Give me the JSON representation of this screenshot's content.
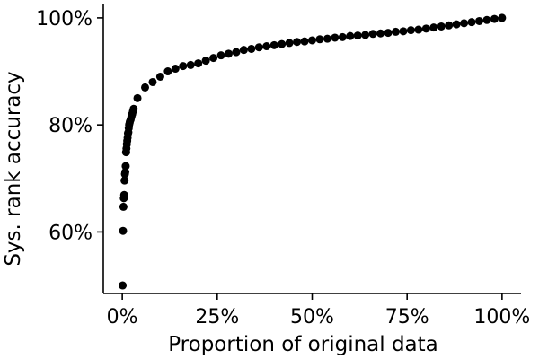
{
  "chart_data": {
    "type": "scatter",
    "title": "",
    "xlabel": "Proportion of original data",
    "ylabel": "Sys. rank accuracy",
    "xlim": [
      -0.05,
      1.05
    ],
    "ylim": [
      48.5,
      102.5
    ],
    "grid": false,
    "legend": "none",
    "marker_color": "#000000",
    "x_ticks": [
      {
        "value": 0.0,
        "label": "0%"
      },
      {
        "value": 0.25,
        "label": "25%"
      },
      {
        "value": 0.5,
        "label": "50%"
      },
      {
        "value": 0.75,
        "label": "75%"
      },
      {
        "value": 1.0,
        "label": "100%"
      }
    ],
    "y_ticks": [
      {
        "value": 60,
        "label": "60%"
      },
      {
        "value": 80,
        "label": "80%"
      },
      {
        "value": 100,
        "label": "100%"
      }
    ],
    "series": [
      {
        "points": [
          [
            0.001,
            50.0
          ],
          [
            0.002,
            60.2
          ],
          [
            0.003,
            64.7
          ],
          [
            0.004,
            66.3
          ],
          [
            0.005,
            66.9
          ],
          [
            0.006,
            69.6
          ],
          [
            0.007,
            70.8
          ],
          [
            0.008,
            71.2
          ],
          [
            0.009,
            72.3
          ],
          [
            0.01,
            74.9
          ],
          [
            0.011,
            75.6
          ],
          [
            0.012,
            76.4
          ],
          [
            0.013,
            77.0
          ],
          [
            0.014,
            77.6
          ],
          [
            0.015,
            78.4
          ],
          [
            0.016,
            78.6
          ],
          [
            0.017,
            79.4
          ],
          [
            0.018,
            80.0
          ],
          [
            0.019,
            80.3
          ],
          [
            0.02,
            80.6
          ],
          [
            0.022,
            81.0
          ],
          [
            0.024,
            81.5
          ],
          [
            0.026,
            82.0
          ],
          [
            0.028,
            82.5
          ],
          [
            0.03,
            83.0
          ],
          [
            0.04,
            85.0
          ],
          [
            0.06,
            87.0
          ],
          [
            0.08,
            88.0
          ],
          [
            0.1,
            89.0
          ],
          [
            0.12,
            90.0
          ],
          [
            0.14,
            90.5
          ],
          [
            0.16,
            91.0
          ],
          [
            0.18,
            91.2
          ],
          [
            0.2,
            91.5
          ],
          [
            0.22,
            92.0
          ],
          [
            0.24,
            92.5
          ],
          [
            0.26,
            93.0
          ],
          [
            0.28,
            93.3
          ],
          [
            0.3,
            93.6
          ],
          [
            0.32,
            94.0
          ],
          [
            0.34,
            94.2
          ],
          [
            0.36,
            94.5
          ],
          [
            0.38,
            94.7
          ],
          [
            0.4,
            94.9
          ],
          [
            0.42,
            95.1
          ],
          [
            0.44,
            95.3
          ],
          [
            0.46,
            95.5
          ],
          [
            0.48,
            95.6
          ],
          [
            0.5,
            95.8
          ],
          [
            0.52,
            96.0
          ],
          [
            0.54,
            96.1
          ],
          [
            0.56,
            96.3
          ],
          [
            0.58,
            96.4
          ],
          [
            0.6,
            96.6
          ],
          [
            0.62,
            96.7
          ],
          [
            0.64,
            96.8
          ],
          [
            0.66,
            97.0
          ],
          [
            0.68,
            97.1
          ],
          [
            0.7,
            97.2
          ],
          [
            0.72,
            97.4
          ],
          [
            0.74,
            97.5
          ],
          [
            0.76,
            97.7
          ],
          [
            0.78,
            97.8
          ],
          [
            0.8,
            98.0
          ],
          [
            0.82,
            98.2
          ],
          [
            0.84,
            98.4
          ],
          [
            0.86,
            98.6
          ],
          [
            0.88,
            98.8
          ],
          [
            0.9,
            99.0
          ],
          [
            0.92,
            99.2
          ],
          [
            0.94,
            99.4
          ],
          [
            0.96,
            99.6
          ],
          [
            0.98,
            99.8
          ],
          [
            1.0,
            100.0
          ]
        ]
      }
    ]
  }
}
